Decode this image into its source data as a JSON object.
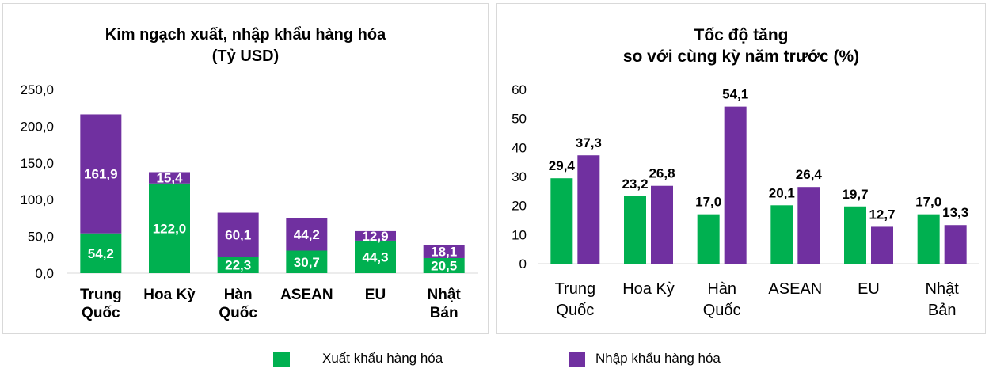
{
  "colors": {
    "export": "#00b050",
    "import": "#7030a0"
  },
  "legend": {
    "export_label": "Xuất khẩu hàng hóa",
    "import_label": "Nhập khẩu hàng hóa"
  },
  "chart_data": [
    {
      "type": "bar",
      "stacked": true,
      "title": "Kim ngạch xuất, nhập khẩu hàng hóa\n(Tỷ USD)",
      "categories": [
        "Trung\nQuốc",
        "Hoa Kỳ",
        "Hàn\nQuốc",
        "ASEAN",
        "EU",
        "Nhật\nBản"
      ],
      "y_ticks": [
        "0,0",
        "50,0",
        "100,0",
        "150,0",
        "200,0",
        "250,0"
      ],
      "ylim": [
        0,
        250
      ],
      "grid": false,
      "series": [
        {
          "name": "Xuất khẩu hàng hóa",
          "values": [
            54.2,
            122.0,
            22.3,
            30.7,
            44.3,
            20.5
          ],
          "labels": [
            "54,2",
            "122,0",
            "22,3",
            "30,7",
            "44,3",
            "20,5"
          ]
        },
        {
          "name": "Nhập khẩu hàng hóa",
          "values": [
            161.9,
            15.4,
            60.1,
            44.2,
            12.9,
            18.1
          ],
          "labels": [
            "161,9",
            "15,4",
            "60,1",
            "44,2",
            "12,9",
            "18,1"
          ]
        }
      ]
    },
    {
      "type": "bar",
      "stacked": false,
      "title": "Tốc độ tăng\nso với cùng kỳ năm trước (%)",
      "categories": [
        "Trung\nQuốc",
        "Hoa Kỳ",
        "Hàn\nQuốc",
        "ASEAN",
        "EU",
        "Nhật\nBản"
      ],
      "y_ticks": [
        "0",
        "10",
        "20",
        "30",
        "40",
        "50",
        "60"
      ],
      "ylim": [
        0,
        60
      ],
      "grid": false,
      "series": [
        {
          "name": "Xuất khẩu hàng hóa",
          "values": [
            29.4,
            23.2,
            17.0,
            20.1,
            19.7,
            17.0
          ],
          "labels": [
            "29,4",
            "23,2",
            "17,0",
            "20,1",
            "19,7",
            "17,0"
          ]
        },
        {
          "name": "Nhập khẩu hàng hóa",
          "values": [
            37.3,
            26.8,
            54.1,
            26.4,
            12.7,
            13.3
          ],
          "labels": [
            "37,3",
            "26,8",
            "54,1",
            "26,4",
            "12,7",
            "13,3"
          ]
        }
      ]
    }
  ]
}
